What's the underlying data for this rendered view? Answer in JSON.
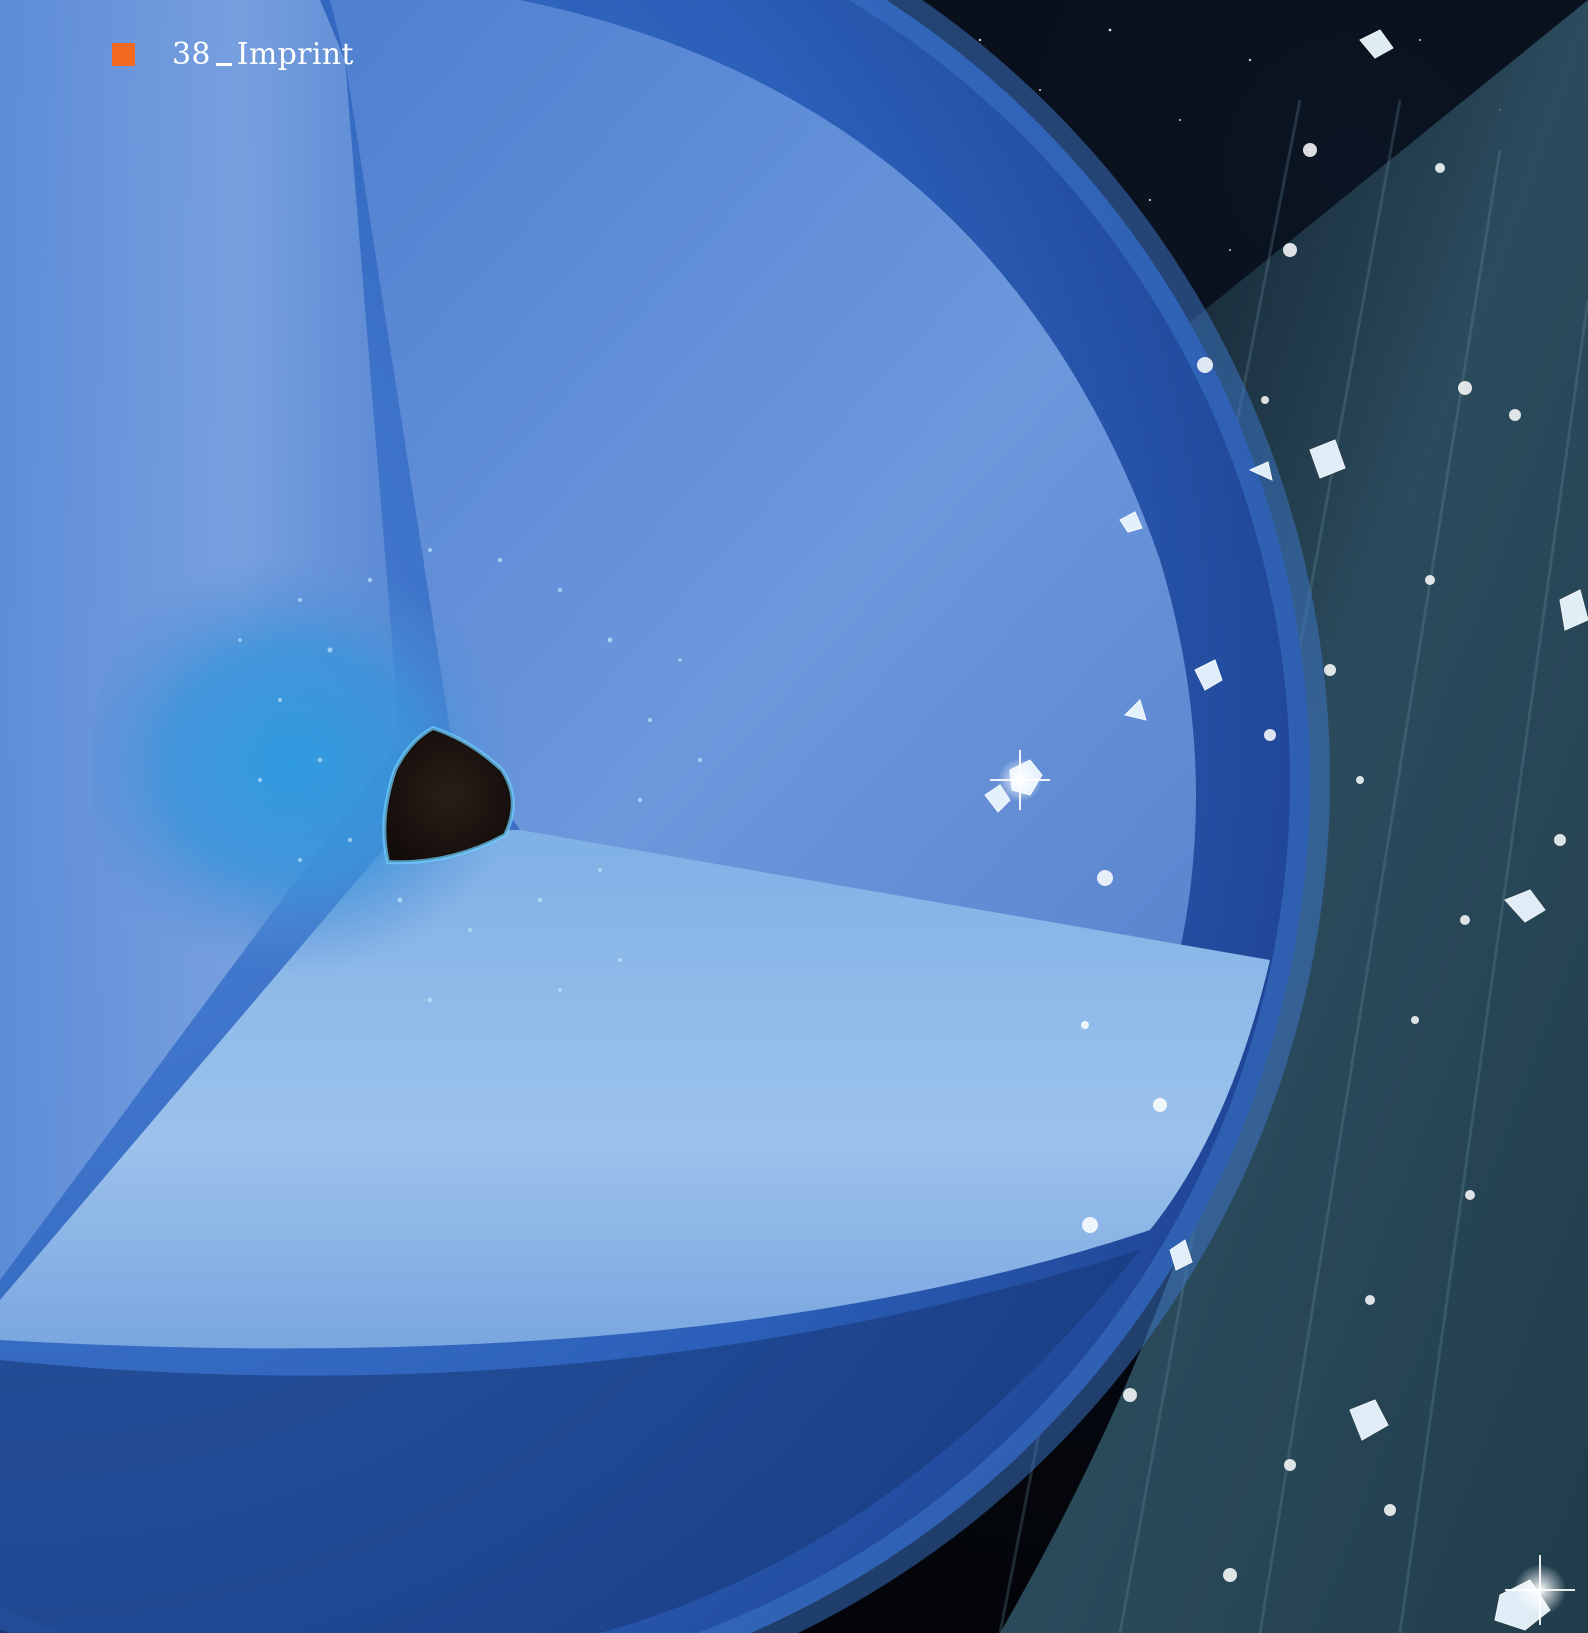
{
  "header": {
    "page_number": "38",
    "section_title": "Imprint",
    "marker_color": "#f26a21"
  },
  "illustration": {
    "subject": "cutaway-planet-with-diamond-rain",
    "colors": {
      "space": "#05080f",
      "planet_outer": "#2a5db8",
      "planet_mantle": "#6f9ee0",
      "planet_inner_layer": "#3d8fd6",
      "core": "#1e1410",
      "crystal": "#e8f6ff",
      "rain_haze": "#2c4d5e"
    }
  }
}
